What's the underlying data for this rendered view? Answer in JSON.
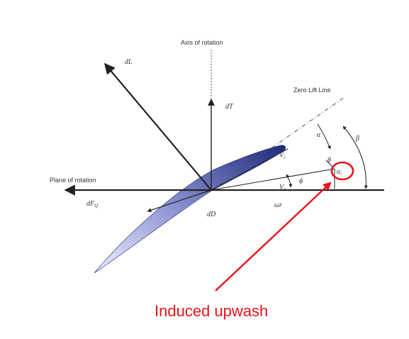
{
  "labels": {
    "axis_of_rotation": "Axis of rotation",
    "zero_lift_line": "Zero Lift Line",
    "plane_of_rotation": "Plane of rotation",
    "dL": "dL",
    "dT": "dT",
    "dFQ": "dF",
    "dFQ_sub": "Q",
    "dD": "dD",
    "omega_r": "ωr",
    "Vi": "V",
    "Vi_sub": "i",
    "Vr": "V",
    "Vr_sub": "r",
    "alpha": "α",
    "beta": "β",
    "phi": "ϕ",
    "theta": "θ",
    "alpha_i": "α",
    "alpha_i_sub": "i"
  },
  "callout": {
    "text": "Induced upwash"
  },
  "colors": {
    "callout_red": "#e8131b",
    "blade_dark": "#1f2a7a",
    "blade_light": "#c8cdf0",
    "line": "#222222"
  }
}
